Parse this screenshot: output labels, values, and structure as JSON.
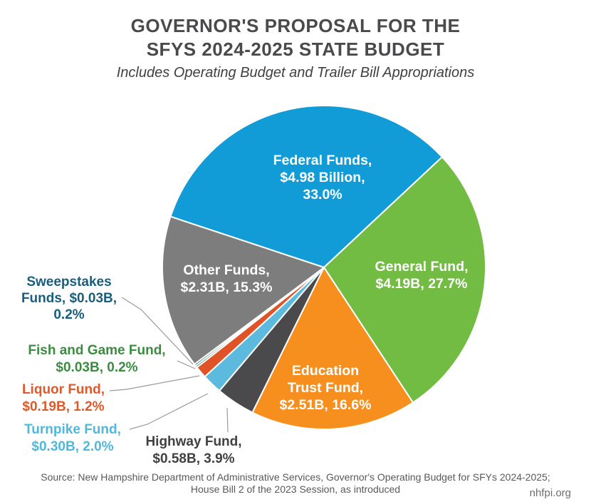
{
  "header": {
    "title_line1": "GOVERNOR'S PROPOSAL FOR THE",
    "title_line2": "SFYS 2024-2025 STATE BUDGET",
    "subtitle": "Includes Operating Budget and Trailer Bill Appropriations"
  },
  "chart_data": {
    "type": "pie",
    "title": "Governor's Proposal for the SFYs 2024-2025 State Budget",
    "subtitle": "Includes Operating Budget and Trailer Bill Appropriations",
    "units": "billions USD",
    "direction": "clockwise",
    "start_angle_deg": 161.7,
    "slices": [
      {
        "name": "Federal Funds",
        "value_billions": 4.98,
        "percent": 33.0,
        "color": "#119CD8",
        "label_placement": "inside",
        "label_color": "#ffffff",
        "label_lines": [
          "Federal Funds,",
          "$4.98 Billion,",
          "33.0%"
        ]
      },
      {
        "name": "General Fund",
        "value_billions": 4.19,
        "percent": 27.7,
        "color": "#72BC44",
        "label_placement": "inside",
        "label_color": "#ffffff",
        "label_lines": [
          "General Fund,",
          "$4.19B, 27.7%"
        ]
      },
      {
        "name": "Education Trust Fund",
        "value_billions": 2.51,
        "percent": 16.6,
        "color": "#F78F1E",
        "label_placement": "inside",
        "label_color": "#ffffff",
        "label_lines": [
          "Education",
          "Trust Fund,",
          "$2.51B, 16.6%"
        ]
      },
      {
        "name": "Highway Fund",
        "value_billions": 0.58,
        "percent": 3.9,
        "color": "#4A4A4C",
        "label_placement": "outside",
        "label_color": "#414042",
        "label_lines": [
          "Highway Fund,",
          "$0.58B, 3.9%"
        ]
      },
      {
        "name": "Turnpike Fund",
        "value_billions": 0.3,
        "percent": 2.0,
        "color": "#5BBADE",
        "label_placement": "outside",
        "label_color": "#4FB8DC",
        "label_lines": [
          "Turnpike Fund,",
          "$0.30B, 2.0%"
        ]
      },
      {
        "name": "Liquor Fund",
        "value_billions": 0.19,
        "percent": 1.2,
        "color": "#DF5327",
        "label_placement": "outside",
        "label_color": "#E0592B",
        "label_lines": [
          "Liquor Fund,",
          "$0.19B, 1.2%"
        ]
      },
      {
        "name": "Fish and Game Fund",
        "value_billions": 0.03,
        "percent": 0.2,
        "color": "#2F8C3C",
        "label_placement": "outside",
        "label_color": "#3B8C40",
        "label_lines": [
          "Fish and Game Fund,",
          "$0.03B, 0.2%"
        ]
      },
      {
        "name": "Sweepstakes Funds",
        "value_billions": 0.03,
        "percent": 0.2,
        "color": "#1A5E7D",
        "label_placement": "outside",
        "label_color": "#1A5E7D",
        "label_lines": [
          "Sweepstakes",
          "Funds, $0.03B,",
          "0.2%"
        ]
      },
      {
        "name": "Other Funds",
        "value_billions": 2.31,
        "percent": 15.3,
        "color": "#7D7D7D",
        "label_placement": "inside",
        "label_color": "#ffffff",
        "label_lines": [
          "Other Funds,",
          "$2.31B, 15.3%"
        ]
      }
    ]
  },
  "footer": {
    "source_line1": "Source: New Hampshire Department of Administrative Services, Governor's Operating Budget for SFYs 2024-2025;",
    "source_line2": "House Bill 2 of the 2023 Session, as introduced",
    "website": "nhfpi.org"
  }
}
